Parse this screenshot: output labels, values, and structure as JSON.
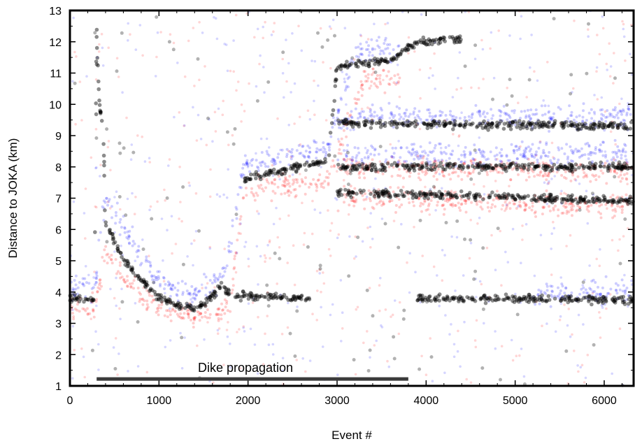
{
  "chart_data": {
    "type": "scatter",
    "xlabel": "Event #",
    "ylabel": "Distance to JOKA (km)",
    "xlim": [
      0,
      6330
    ],
    "ylim": [
      1,
      13
    ],
    "xticks": [
      0,
      1000,
      2000,
      3000,
      4000,
      5000,
      6000
    ],
    "yticks": [
      1,
      2,
      3,
      4,
      5,
      6,
      7,
      8,
      9,
      10,
      11,
      12,
      13
    ],
    "grid": false,
    "colors": {
      "black": "#000000",
      "blue": "#1a1aff",
      "red": "#ff1a1a",
      "annotation_bar": "#3a3a3a"
    },
    "series": [
      {
        "color": "black",
        "trend": [
          {
            "x": 0,
            "y": 3.8
          },
          {
            "x": 280,
            "y": 3.8
          },
          {
            "x": 300,
            "y": 12.5
          },
          {
            "x": 330,
            "y": 10.0
          },
          {
            "x": 370,
            "y": 9.2
          },
          {
            "x": 400,
            "y": 6.2
          },
          {
            "x": 600,
            "y": 5.0
          },
          {
            "x": 800,
            "y": 4.4
          },
          {
            "x": 1000,
            "y": 3.8
          },
          {
            "x": 1200,
            "y": 3.6
          },
          {
            "x": 1400,
            "y": 3.5
          },
          {
            "x": 1600,
            "y": 3.8
          },
          {
            "x": 1700,
            "y": 4.3
          },
          {
            "x": 1800,
            "y": 3.9
          },
          {
            "x": 2700,
            "y": 3.8
          },
          {
            "x": 1950,
            "y": 7.6
          },
          {
            "x": 2400,
            "y": 7.9
          },
          {
            "x": 2900,
            "y": 8.2
          },
          {
            "x": 3000,
            "y": 11.2
          },
          {
            "x": 3600,
            "y": 11.4
          },
          {
            "x": 3800,
            "y": 11.8
          },
          {
            "x": 3900,
            "y": 12.0
          },
          {
            "x": 4400,
            "y": 12.1
          },
          {
            "x": 3000,
            "y": 9.4
          },
          {
            "x": 6330,
            "y": 9.3
          },
          {
            "x": 3000,
            "y": 8.0
          },
          {
            "x": 6330,
            "y": 8.0
          },
          {
            "x": 3000,
            "y": 7.2
          },
          {
            "x": 6330,
            "y": 6.9
          },
          {
            "x": 3900,
            "y": 3.8
          },
          {
            "x": 6330,
            "y": 3.75
          }
        ]
      },
      {
        "color": "blue",
        "trend": [
          {
            "x": 0,
            "y": 4.1
          },
          {
            "x": 280,
            "y": 4.1
          },
          {
            "x": 400,
            "y": 7.0
          },
          {
            "x": 800,
            "y": 5.2
          },
          {
            "x": 1000,
            "y": 4.4
          },
          {
            "x": 1350,
            "y": 3.9
          },
          {
            "x": 1600,
            "y": 4.2
          },
          {
            "x": 1750,
            "y": 4.8
          },
          {
            "x": 1950,
            "y": 8.0
          },
          {
            "x": 2500,
            "y": 8.4
          },
          {
            "x": 2900,
            "y": 8.6
          },
          {
            "x": 3200,
            "y": 11.7
          },
          {
            "x": 3700,
            "y": 11.8
          },
          {
            "x": 3000,
            "y": 9.6
          },
          {
            "x": 6330,
            "y": 9.6
          },
          {
            "x": 3000,
            "y": 8.4
          },
          {
            "x": 6330,
            "y": 8.4
          },
          {
            "x": 5200,
            "y": 4.0
          },
          {
            "x": 6330,
            "y": 4.0
          }
        ]
      },
      {
        "color": "red",
        "trend": [
          {
            "x": 0,
            "y": 3.5
          },
          {
            "x": 280,
            "y": 3.5
          },
          {
            "x": 400,
            "y": 5.2
          },
          {
            "x": 800,
            "y": 3.9
          },
          {
            "x": 1000,
            "y": 3.5
          },
          {
            "x": 1350,
            "y": 3.2
          },
          {
            "x": 1600,
            "y": 3.3
          },
          {
            "x": 1800,
            "y": 3.6
          },
          {
            "x": 1950,
            "y": 7.2
          },
          {
            "x": 2500,
            "y": 7.4
          },
          {
            "x": 2900,
            "y": 7.6
          },
          {
            "x": 3300,
            "y": 10.8
          },
          {
            "x": 3700,
            "y": 10.8
          },
          {
            "x": 3000,
            "y": 8.0
          },
          {
            "x": 6330,
            "y": 7.8
          },
          {
            "x": 3000,
            "y": 7.0
          },
          {
            "x": 6330,
            "y": 6.7
          }
        ]
      }
    ],
    "annotation": {
      "text": "Dike propagation",
      "x_start": 300,
      "x_end": 3800,
      "y": 1.22
    }
  }
}
